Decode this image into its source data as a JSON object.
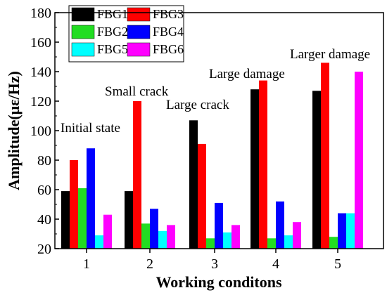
{
  "chart_data": {
    "type": "bar",
    "xlabel": "Working conditons",
    "ylabel": "Amplitude(με/Hz)",
    "categories": [
      "1",
      "2",
      "3",
      "4",
      "5"
    ],
    "ylim": [
      20,
      180
    ],
    "yticks": [
      20,
      40,
      60,
      80,
      100,
      120,
      140,
      160,
      180
    ],
    "legend_position": "top-left",
    "series": [
      {
        "name": "FBG1",
        "color": "#000000",
        "values": [
          59,
          59,
          107,
          128,
          127
        ]
      },
      {
        "name": "FBG3",
        "color": "#ff0000",
        "values": [
          80,
          120,
          91,
          134,
          146
        ]
      },
      {
        "name": "FBG2",
        "color": "#22dd22",
        "values": [
          61,
          37,
          27,
          27,
          28
        ]
      },
      {
        "name": "FBG4",
        "color": "#0000ff",
        "values": [
          88,
          47,
          51,
          52,
          44
        ]
      },
      {
        "name": "FBG5",
        "color": "#00ffff",
        "values": [
          29,
          32,
          31,
          29,
          44
        ]
      },
      {
        "name": "FBG6",
        "color": "#ff00ff",
        "values": [
          43,
          36,
          36,
          38,
          140
        ]
      }
    ],
    "bar_order": [
      "FBG1",
      "FBG3",
      "FBG2",
      "FBG4",
      "FBG5",
      "FBG6"
    ],
    "annotations": [
      {
        "text": "Initial state",
        "category": "1"
      },
      {
        "text": "Small crack",
        "category": "2"
      },
      {
        "text": "Large crack",
        "category": "3"
      },
      {
        "text": "Large damage",
        "category": "4"
      },
      {
        "text": "Larger damage",
        "category": "5"
      }
    ]
  }
}
